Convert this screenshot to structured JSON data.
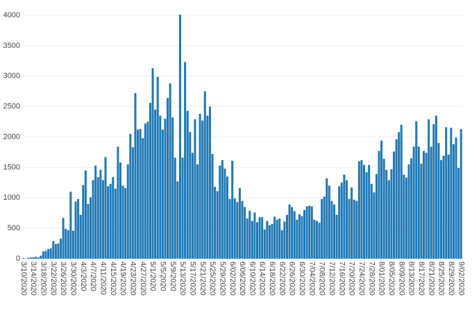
{
  "chart_data": {
    "type": "bar",
    "color": "#1f78b4",
    "grid": true,
    "ylim": [
      0,
      4000
    ],
    "yticks": [
      0,
      500,
      1000,
      1500,
      2000,
      2500,
      3000,
      3500,
      4000
    ],
    "categories": [
      "3/10/2020",
      null,
      null,
      null,
      "3/14/2020",
      null,
      null,
      null,
      "3/18/2020",
      null,
      null,
      null,
      "3/22/2020",
      null,
      null,
      null,
      "3/26/2020",
      null,
      null,
      null,
      "3/30/2020",
      null,
      null,
      null,
      "4/3/2020",
      null,
      null,
      null,
      "4/7/2020",
      null,
      null,
      null,
      "4/11/2020",
      null,
      null,
      null,
      "4/15/2020",
      null,
      null,
      null,
      "4/19/2020",
      null,
      null,
      null,
      "4/23/2020",
      null,
      null,
      null,
      "4/27/2020",
      null,
      null,
      null,
      "5/1/2020",
      null,
      null,
      null,
      "5/5/2020",
      null,
      null,
      null,
      "5/9/2020",
      null,
      null,
      null,
      "5/13/2020",
      null,
      null,
      null,
      "5/17/2020",
      null,
      null,
      null,
      "5/21/2020",
      null,
      null,
      null,
      "5/25/2020",
      null,
      null,
      null,
      "5/29/2020",
      null,
      null,
      null,
      "6/02/2020",
      null,
      null,
      null,
      "6/06/2020",
      null,
      null,
      null,
      "6/10/2020",
      null,
      null,
      null,
      "6/14/2020",
      null,
      null,
      null,
      "6/18/2020",
      null,
      null,
      null,
      "6/22/2020",
      null,
      null,
      null,
      "6/26/2020",
      null,
      null,
      null,
      "6/30/2020",
      null,
      null,
      null,
      "7/04/2020",
      null,
      null,
      null,
      "7/08/2020",
      null,
      null,
      null,
      "7/12/2020",
      null,
      null,
      null,
      "7/16/2020",
      null,
      null,
      null,
      "7/20/2020",
      null,
      null,
      null,
      "7/24/2020",
      null,
      null,
      null,
      "7/28/2020",
      null,
      null,
      null,
      "8/01/2020",
      null,
      null,
      null,
      "8/05/2020",
      null,
      null,
      null,
      "8/09/2020",
      null,
      null,
      null,
      "8/13/2020",
      null,
      null,
      null,
      "8/17/2020",
      null,
      null,
      null,
      "8/21/2020",
      null,
      null,
      null,
      "8/25/2020",
      null,
      null,
      null,
      "8/29/2020",
      null,
      null,
      null,
      "9/02/2020"
    ],
    "values": [
      10,
      5,
      15,
      20,
      25,
      30,
      20,
      50,
      120,
      130,
      160,
      170,
      290,
      240,
      250,
      330,
      670,
      490,
      470,
      1100,
      460,
      940,
      980,
      720,
      1210,
      1450,
      900,
      1010,
      1290,
      1530,
      1340,
      1460,
      1290,
      1670,
      1190,
      1230,
      1340,
      1150,
      1840,
      1580,
      1200,
      1160,
      1550,
      2050,
      1830,
      2720,
      2120,
      2130,
      1980,
      2220,
      2250,
      2560,
      3130,
      2450,
      2990,
      2350,
      2120,
      2300,
      2640,
      2880,
      2320,
      1660,
      1270,
      4010,
      1660,
      3230,
      2430,
      2080,
      1740,
      2290,
      1550,
      2380,
      2270,
      2750,
      2350,
      2500,
      1720,
      1180,
      1110,
      1530,
      1620,
      1480,
      1350,
      980,
      1610,
      990,
      930,
      1160,
      950,
      850,
      660,
      790,
      620,
      760,
      600,
      680,
      680,
      480,
      620,
      550,
      570,
      690,
      640,
      660,
      470,
      610,
      720,
      890,
      850,
      780,
      640,
      730,
      700,
      800,
      860,
      870,
      860,
      640,
      620,
      590,
      980,
      1020,
      1320,
      1200,
      950,
      890,
      720,
      1190,
      1250,
      1380,
      1290,
      980,
      1170,
      970,
      950,
      1600,
      1620,
      1540,
      1420,
      1540,
      1230,
      1090,
      1390,
      1770,
      1940,
      1640,
      1460,
      1290,
      1470,
      1760,
      1960,
      2080,
      2200,
      1380,
      1330,
      1550,
      1650,
      1840,
      2260,
      1840,
      1560,
      1770,
      1740,
      2290,
      1840,
      2210,
      2350,
      1900,
      1620,
      1690,
      2160,
      1710,
      2150,
      1880,
      1990,
      1490,
      2130
    ]
  }
}
